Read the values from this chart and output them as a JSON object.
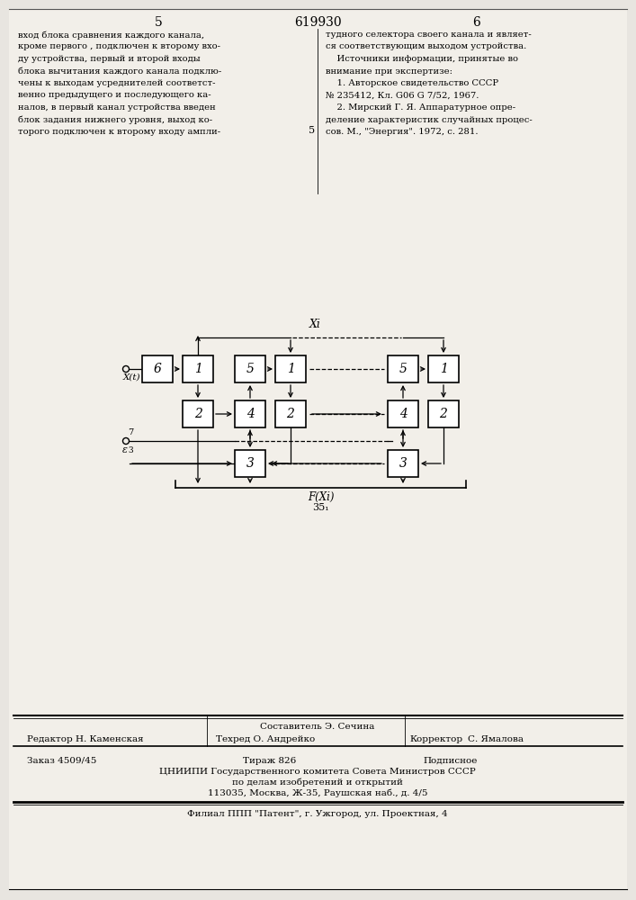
{
  "bg_color": "#e8e5e0",
  "page_color": "#f2efe9",
  "title_number": "619930",
  "page_left": "5",
  "page_right": "6",
  "text_left": "вход блока сравнения каждого канала,\nкроме первого , подключен к второму вхо-\nду устройства, первый и второй входы\nблока вычитания каждого канала подклю-\nчены к выходам усреднителей соответст-\nвенно предыдущего и последующего ка-\nналов, в первый канал устройства введен\nблок задания нижнего уровня, выход ко-\nторого подключен к второму входу ампли-",
  "text_right": "тудного селектора своего канала и являет-\nся соответствующим выходом устройства.\n    Источники информации, принятые во\nвнимание при экспертизе:\n    1. Авторское свидетельство СССР\n№ 235412, Кл. G06 G 7/52, 1967.\n    2. Мирский Г. Я. Аппаратурное опре-\nделение характеристик случайных процес-\nсов. М., \"Энергия\". 1972, с. 281.",
  "mid_label_5": "5",
  "footer_sestavitel": "Составитель Э. Сечина",
  "footer_redaktor_label": "Редактор Н. Каменская",
  "footer_tehred_label": "Техред О. Андрейко",
  "footer_korrektor_label": "Корректор",
  "footer_korrektor_name": "С. Ямалова",
  "footer_zakaz": "Заказ 4509/45",
  "footer_tirazh": "Тираж 826",
  "footer_podpisnoe": "Подписное",
  "footer_cniip1": "ЦНИИПИ Государственного комитета Совета Министров СССР",
  "footer_cniip2": "по делам изобретений и открытий",
  "footer_cniip3": "113035, Москва, Ж-35, Раушская наб., д. 4/5",
  "footer_filial": "Филиал ППП \"Патент\", г. Ужгород, ул. Проектная, 4",
  "diagram_xi": "Xi",
  "diagram_xt": "X(t)",
  "diagram_fxi": "F(Xi)",
  "diagram_num": "35₁"
}
